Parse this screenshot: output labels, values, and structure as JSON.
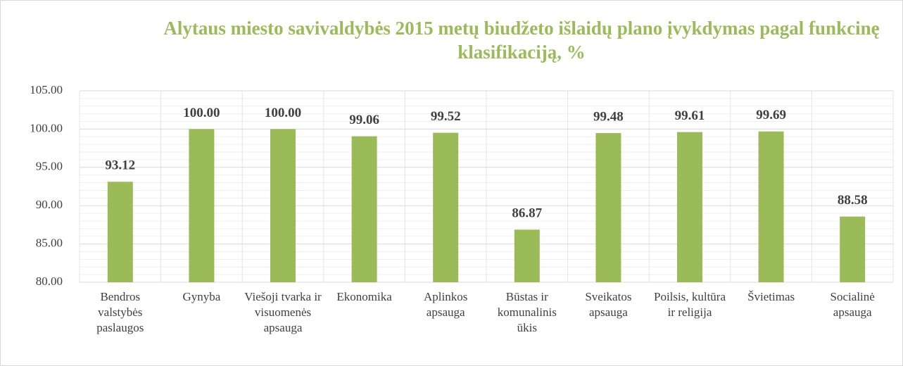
{
  "chart_data": {
    "type": "bar",
    "title": "Alytaus miesto savivaldybės 2015 metų biudžeto išlaidų plano įvykdymas pagal funkcinę klasifikaciją, %",
    "categories": [
      "Bendros valstybės paslaugos",
      "Gynyba",
      "Viešoji tvarka ir visuomenės apsauga",
      "Ekonomika",
      "Aplinkos apsauga",
      "Būstas ir komunalinis ūkis",
      "Sveikatos apsauga",
      "Poilsis, kultūra ir religija",
      "Švietimas",
      "Socialinė apsauga"
    ],
    "values": [
      93.12,
      100,
      100,
      99.06,
      99.52,
      86.87,
      99.48,
      99.61,
      99.69,
      88.58
    ],
    "value_labels": [
      "93.12",
      "100.00",
      "100.00",
      "99.06",
      "99.52",
      "86.87",
      "99.48",
      "99.61",
      "99.69",
      "88.58"
    ],
    "color": "#9bbb59",
    "ylim": [
      80,
      105
    ],
    "yticks": [
      {
        "value": 80,
        "label": "80.00"
      },
      {
        "value": 85,
        "label": "85.00"
      },
      {
        "value": 90,
        "label": "90.00"
      },
      {
        "value": 95,
        "label": "95.00"
      },
      {
        "value": 100,
        "label": "100.00"
      },
      {
        "value": 105,
        "label": "105.00"
      }
    ],
    "grid": true
  }
}
